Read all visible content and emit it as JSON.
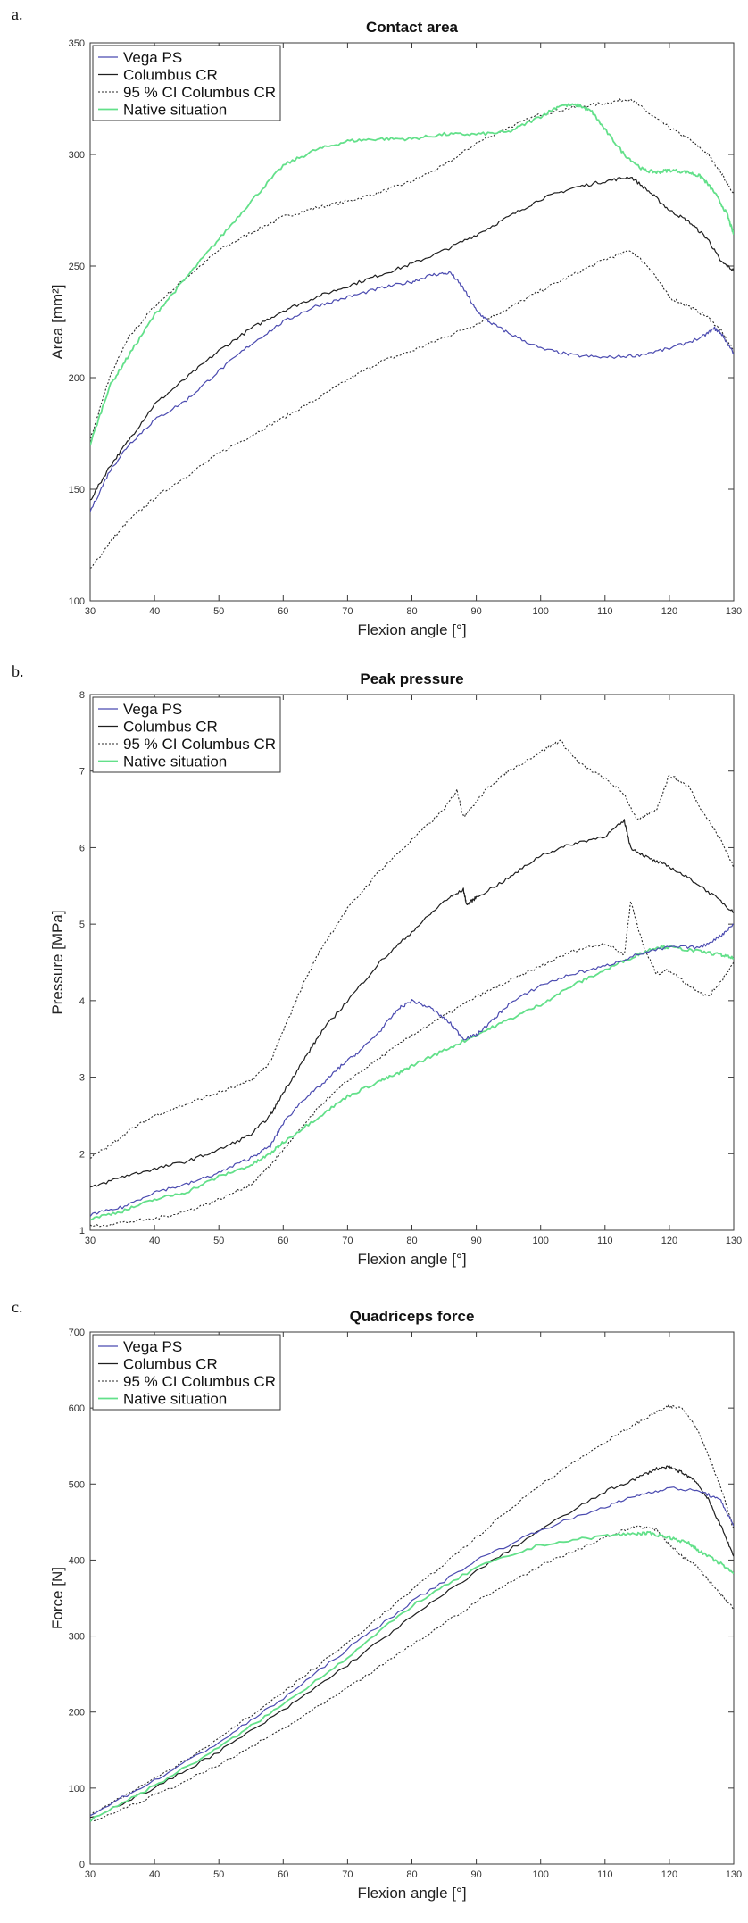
{
  "colors": {
    "vega": "#4b4bb0",
    "columbus": "#1f1f1f",
    "ci": "#2a2a2a",
    "native": "#63e08a"
  },
  "chart_data": [
    {
      "type": "line",
      "panel_label": "a.",
      "title": "Contact area",
      "xlabel": "Flexion angle [°]",
      "ylabel": "Area [mm²]",
      "xlim": [
        30,
        130
      ],
      "ylim": [
        100,
        350
      ],
      "xticks": [
        30,
        40,
        50,
        60,
        70,
        80,
        90,
        100,
        110,
        120,
        130
      ],
      "yticks": [
        100,
        150,
        200,
        250,
        300,
        350
      ],
      "legend": [
        "Vega PS",
        "Columbus CR",
        "95 % CI Columbus CR",
        "Native situation"
      ],
      "series": [
        {
          "name": "Vega PS",
          "x": [
            30,
            33,
            36,
            40,
            45,
            50,
            55,
            60,
            65,
            70,
            75,
            80,
            83,
            86,
            88,
            90,
            92,
            95,
            100,
            105,
            110,
            115,
            120,
            125,
            127,
            128,
            130
          ],
          "values": [
            140,
            158,
            170,
            181,
            190,
            203,
            215,
            225,
            232,
            236,
            240,
            243,
            246,
            247,
            240,
            230,
            225,
            220,
            213,
            210,
            209,
            210,
            213,
            218,
            222,
            220,
            211
          ]
        },
        {
          "name": "Columbus CR",
          "x": [
            30,
            33,
            36,
            40,
            45,
            50,
            55,
            60,
            65,
            70,
            75,
            80,
            85,
            90,
            95,
            100,
            105,
            110,
            114,
            117,
            120,
            123,
            126,
            128,
            130
          ],
          "values": [
            145,
            160,
            172,
            188,
            200,
            212,
            222,
            230,
            236,
            241,
            246,
            251,
            257,
            264,
            272,
            280,
            285,
            288,
            290,
            283,
            275,
            270,
            262,
            252,
            248
          ]
        },
        {
          "name": "95 % CI Columbus CR (upper)",
          "x": [
            30,
            33,
            36,
            40,
            45,
            50,
            55,
            60,
            65,
            70,
            75,
            80,
            85,
            90,
            95,
            100,
            105,
            110,
            114,
            117,
            120,
            123,
            126,
            128,
            130
          ],
          "values": [
            172,
            200,
            218,
            232,
            245,
            257,
            265,
            272,
            276,
            279,
            283,
            288,
            295,
            305,
            312,
            318,
            321,
            323,
            325,
            318,
            312,
            307,
            300,
            292,
            282
          ]
        },
        {
          "name": "95 % CI Columbus CR (lower)",
          "x": [
            30,
            33,
            36,
            40,
            45,
            50,
            55,
            60,
            65,
            70,
            75,
            80,
            85,
            90,
            95,
            100,
            105,
            110,
            114,
            117,
            120,
            123,
            126,
            128,
            130
          ],
          "values": [
            114,
            126,
            136,
            146,
            156,
            166,
            174,
            182,
            190,
            199,
            207,
            212,
            218,
            224,
            231,
            239,
            246,
            253,
            257,
            249,
            236,
            232,
            227,
            221,
            212
          ]
        },
        {
          "name": "Native situation",
          "x": [
            30,
            33,
            36,
            40,
            45,
            50,
            55,
            60,
            65,
            70,
            75,
            80,
            85,
            90,
            95,
            100,
            103,
            106,
            108,
            110,
            113,
            116,
            118,
            120,
            123,
            125,
            127,
            129,
            130
          ],
          "values": [
            170,
            196,
            210,
            228,
            245,
            262,
            279,
            295,
            302,
            306,
            307,
            307,
            309,
            309,
            310,
            317,
            322,
            322,
            319,
            311,
            300,
            293,
            292,
            293,
            292,
            290,
            283,
            273,
            264
          ]
        }
      ]
    },
    {
      "type": "line",
      "panel_label": "b.",
      "title": "Peak pressure",
      "xlabel": "Flexion angle [°]",
      "ylabel": "Pressure [MPa]",
      "xlim": [
        30,
        130
      ],
      "ylim": [
        1,
        8
      ],
      "xticks": [
        30,
        40,
        50,
        60,
        70,
        80,
        90,
        100,
        110,
        120,
        130
      ],
      "yticks": [
        1,
        2,
        3,
        4,
        5,
        6,
        7,
        8
      ],
      "legend": [
        "Vega PS",
        "Columbus CR",
        "95 % CI Columbus CR",
        "Native situation"
      ],
      "series": [
        {
          "name": "Vega PS",
          "x": [
            30,
            35,
            40,
            45,
            50,
            55,
            58,
            60,
            63,
            66,
            69,
            72,
            75,
            78,
            80,
            83,
            86,
            88,
            90,
            92,
            95,
            100,
            105,
            110,
            115,
            120,
            125,
            128,
            130
          ],
          "values": [
            1.2,
            1.3,
            1.5,
            1.6,
            1.75,
            1.95,
            2.1,
            2.4,
            2.7,
            2.9,
            3.15,
            3.35,
            3.6,
            3.9,
            4.0,
            3.9,
            3.7,
            3.5,
            3.55,
            3.7,
            3.95,
            4.2,
            4.35,
            4.45,
            4.6,
            4.7,
            4.7,
            4.85,
            5.0
          ]
        },
        {
          "name": "Columbus CR",
          "x": [
            30,
            35,
            40,
            45,
            50,
            55,
            58,
            60,
            63,
            66,
            70,
            75,
            80,
            85,
            88,
            88.5,
            90,
            95,
            100,
            105,
            110,
            113,
            114,
            117,
            120,
            124,
            128,
            130
          ],
          "values": [
            1.55,
            1.7,
            1.8,
            1.9,
            2.05,
            2.25,
            2.5,
            2.8,
            3.2,
            3.6,
            4.0,
            4.5,
            4.9,
            5.3,
            5.45,
            5.25,
            5.35,
            5.6,
            5.9,
            6.05,
            6.15,
            6.35,
            6.0,
            5.85,
            5.75,
            5.55,
            5.3,
            5.15
          ]
        },
        {
          "name": "95 % CI Columbus CR (upper)",
          "x": [
            30,
            33,
            36,
            40,
            45,
            50,
            55,
            58,
            60,
            63,
            66,
            70,
            75,
            80,
            85,
            87,
            88,
            89,
            92,
            95,
            100,
            103,
            106,
            110,
            113,
            115,
            118,
            120,
            123,
            125,
            128,
            130
          ],
          "values": [
            1.95,
            2.1,
            2.3,
            2.5,
            2.65,
            2.8,
            2.95,
            3.2,
            3.6,
            4.2,
            4.7,
            5.2,
            5.7,
            6.1,
            6.5,
            6.75,
            6.4,
            6.5,
            6.8,
            7.0,
            7.25,
            7.4,
            7.1,
            6.9,
            6.7,
            6.35,
            6.5,
            6.95,
            6.8,
            6.5,
            6.1,
            5.75
          ]
        },
        {
          "name": "95 % CI Columbus CR (lower)",
          "x": [
            30,
            35,
            40,
            45,
            50,
            55,
            58,
            60,
            63,
            66,
            70,
            75,
            80,
            85,
            90,
            95,
            100,
            105,
            110,
            113,
            114,
            116,
            118,
            120,
            123,
            126,
            128,
            130
          ],
          "values": [
            1.05,
            1.1,
            1.15,
            1.25,
            1.4,
            1.6,
            1.85,
            2.05,
            2.35,
            2.65,
            2.95,
            3.25,
            3.55,
            3.8,
            4.05,
            4.25,
            4.45,
            4.65,
            4.75,
            4.6,
            5.3,
            4.7,
            4.35,
            4.4,
            4.2,
            4.05,
            4.25,
            4.5
          ]
        },
        {
          "name": "Native situation",
          "x": [
            30,
            35,
            40,
            45,
            50,
            55,
            58,
            60,
            65,
            70,
            75,
            78,
            80,
            85,
            90,
            95,
            100,
            105,
            110,
            115,
            118,
            120,
            124,
            128,
            130
          ],
          "values": [
            1.15,
            1.25,
            1.4,
            1.5,
            1.7,
            1.85,
            2.0,
            2.15,
            2.45,
            2.75,
            2.95,
            3.05,
            3.15,
            3.35,
            3.55,
            3.75,
            3.95,
            4.2,
            4.4,
            4.6,
            4.7,
            4.7,
            4.65,
            4.6,
            4.55
          ]
        }
      ]
    },
    {
      "type": "line",
      "panel_label": "c.",
      "title": "Quadriceps force",
      "xlabel": "Flexion angle [°]",
      "ylabel": "Force [N]",
      "xlim": [
        30,
        130
      ],
      "ylim": [
        0,
        700
      ],
      "xticks": [
        30,
        40,
        50,
        60,
        70,
        80,
        90,
        100,
        110,
        120,
        130
      ],
      "yticks": [
        0,
        100,
        200,
        300,
        400,
        500,
        600,
        700
      ],
      "legend": [
        "Vega PS",
        "Columbus CR",
        "95 % CI Columbus CR",
        "Native situation"
      ],
      "series": [
        {
          "name": "Vega PS",
          "x": [
            30,
            40,
            50,
            60,
            70,
            80,
            90,
            100,
            110,
            115,
            120,
            125,
            128,
            130
          ],
          "values": [
            65,
            110,
            160,
            218,
            283,
            345,
            400,
            440,
            470,
            485,
            495,
            490,
            478,
            445
          ]
        },
        {
          "name": "Columbus CR",
          "x": [
            30,
            40,
            50,
            60,
            70,
            80,
            90,
            100,
            110,
            115,
            118,
            120,
            122,
            124,
            126,
            128,
            130
          ],
          "values": [
            60,
            100,
            148,
            202,
            262,
            325,
            385,
            440,
            490,
            508,
            520,
            522,
            515,
            505,
            480,
            445,
            405
          ]
        },
        {
          "name": "95 % CI Columbus CR (upper)",
          "x": [
            30,
            40,
            50,
            60,
            70,
            80,
            90,
            100,
            110,
            115,
            118,
            120,
            122,
            124,
            126,
            128,
            130
          ],
          "values": [
            65,
            112,
            165,
            226,
            291,
            360,
            430,
            500,
            555,
            580,
            595,
            602,
            600,
            578,
            540,
            495,
            440
          ]
        },
        {
          "name": "95 % CI Columbus CR (lower)",
          "x": [
            30,
            40,
            50,
            60,
            70,
            80,
            90,
            100,
            110,
            115,
            118,
            120,
            122,
            124,
            126,
            128,
            130
          ],
          "values": [
            55,
            90,
            130,
            178,
            231,
            288,
            345,
            393,
            430,
            445,
            440,
            420,
            405,
            395,
            375,
            355,
            335
          ]
        },
        {
          "name": "Native situation",
          "x": [
            30,
            40,
            50,
            60,
            70,
            80,
            90,
            100,
            110,
            115,
            117,
            120,
            123,
            125,
            128,
            130
          ],
          "values": [
            58,
            103,
            153,
            210,
            272,
            340,
            390,
            420,
            432,
            435,
            435,
            430,
            422,
            410,
            395,
            382
          ]
        }
      ]
    }
  ]
}
